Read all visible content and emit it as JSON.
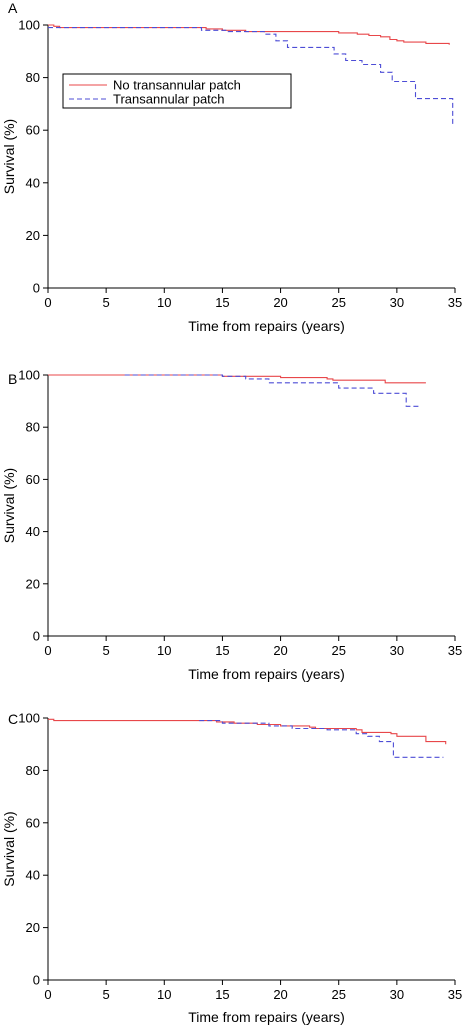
{
  "chart_data": [
    {
      "type": "line",
      "panel": "A",
      "xlabel": "Time from repairs (years)",
      "ylabel": "Survival (%)",
      "xlim": [
        0,
        35
      ],
      "ylim": [
        0,
        100
      ],
      "xticks": [
        0,
        5,
        10,
        15,
        20,
        25,
        30,
        35
      ],
      "yticks": [
        0,
        20,
        40,
        60,
        80,
        100
      ],
      "legend": "top-left",
      "series": [
        {
          "name": "No transannular patch",
          "color": "#e8474a",
          "dash": "solid",
          "x": [
            0,
            0.5,
            1,
            12.8,
            13.6,
            15,
            17,
            20,
            25,
            26.6,
            27.6,
            28.6,
            29.4,
            30,
            30.6,
            31.6,
            32.5,
            34.5
          ],
          "y": [
            100,
            99.5,
            99,
            99,
            98.5,
            98,
            97.5,
            97.5,
            97,
            96.5,
            96,
            95.5,
            94.5,
            94,
            93.5,
            93.5,
            93,
            92.5
          ]
        },
        {
          "name": "Transannular patch",
          "color": "#4d4dd6",
          "dash": "dashed",
          "x": [
            0,
            13.2,
            15.5,
            18.6,
            19.6,
            20.6,
            22.6,
            24.6,
            25.6,
            27,
            28.6,
            29.6,
            31.6,
            34.6,
            34.8
          ],
          "y": [
            99,
            98,
            97.5,
            96.5,
            94,
            91.5,
            91.5,
            89,
            86.5,
            85,
            82,
            78.5,
            72,
            72,
            62
          ]
        }
      ]
    },
    {
      "type": "line",
      "panel": "B",
      "xlabel": "Time from repairs (years)",
      "ylabel": "Survival (%)",
      "xlim": [
        0,
        35
      ],
      "ylim": [
        0,
        100
      ],
      "xticks": [
        0,
        5,
        10,
        15,
        20,
        25,
        30,
        35
      ],
      "yticks": [
        0,
        20,
        40,
        60,
        80,
        100
      ],
      "series": [
        {
          "name": "No transannular patch",
          "color": "#e8474a",
          "dash": "solid",
          "x": [
            0,
            10,
            15,
            18,
            20,
            24,
            24.5,
            27,
            28.8,
            29,
            32.5
          ],
          "y": [
            100,
            100,
            99.5,
            99.5,
            99,
            98.5,
            98,
            98,
            98,
            97,
            97
          ]
        },
        {
          "name": "Transannular patch",
          "color": "#4d4dd6",
          "dash": "dashed",
          "x": [
            6.6,
            11,
            15,
            17,
            19,
            24,
            25,
            27,
            28,
            30.5,
            30.8,
            32
          ],
          "y": [
            100,
            100,
            99.5,
            98.5,
            97,
            97,
            95,
            95,
            93,
            93,
            88,
            88
          ]
        }
      ]
    },
    {
      "type": "line",
      "panel": "C",
      "xlabel": "Time from repairs (years)",
      "ylabel": "Survival (%)",
      "xlim": [
        0,
        35
      ],
      "ylim": [
        0,
        100
      ],
      "xticks": [
        0,
        5,
        10,
        15,
        20,
        25,
        30,
        35
      ],
      "yticks": [
        0,
        20,
        40,
        60,
        80,
        100
      ],
      "series": [
        {
          "name": "No transannular patch",
          "color": "#e8474a",
          "dash": "solid",
          "x": [
            0,
            0.5,
            12,
            14.5,
            16,
            18,
            20,
            22.5,
            23,
            26.5,
            27,
            29.5,
            30,
            32,
            32.5,
            34.2
          ],
          "y": [
            99.5,
            99,
            99,
            98.5,
            98,
            97.5,
            97,
            96.5,
            96,
            95.5,
            94.5,
            94,
            93,
            93,
            91,
            90
          ]
        },
        {
          "name": "Transannular patch",
          "color": "#4d4dd6",
          "dash": "dashed",
          "x": [
            13,
            14,
            15,
            18,
            19,
            21,
            22,
            24,
            26.5,
            27.5,
            28.5,
            29.5,
            29.7,
            31,
            34
          ],
          "y": [
            99,
            99,
            98,
            98,
            97,
            96,
            96,
            95.5,
            94,
            93,
            91,
            91,
            85,
            85,
            85
          ]
        }
      ]
    }
  ]
}
